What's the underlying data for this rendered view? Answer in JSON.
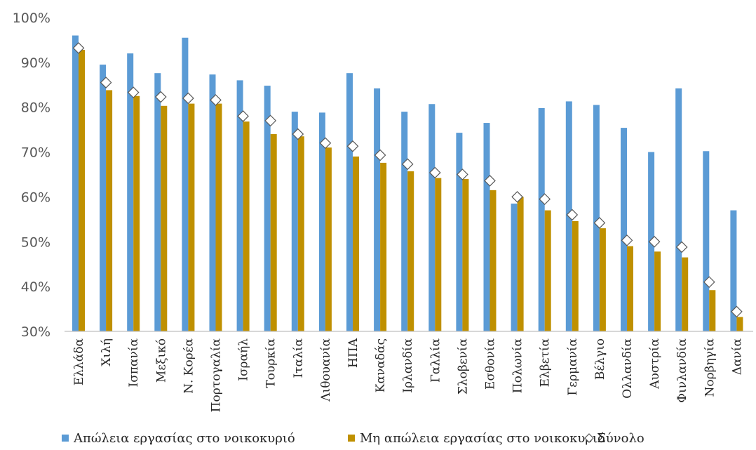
{
  "chart_data": {
    "type": "bar",
    "categories": [
      "Ελλάδα",
      "Χιλή",
      "Ισπανία",
      "Μεξικό",
      "Ν. Κορέα",
      "Πορτογαλία",
      "Ισραήλ",
      "Τουρκία",
      "Ιταλία",
      "Λιθουανία",
      "ΗΠΑ",
      "Καναδάς",
      "Ιρλανδία",
      "Γαλλία",
      "Σλοβενία",
      "Εσθονία",
      "Πολωνία",
      "Ελβετία",
      "Γερμανία",
      "Βέλγιο",
      "Ολλανδία",
      "Αυστρία",
      "Φινλανδία",
      "Νορβηγία",
      "Δανία"
    ],
    "series": [
      {
        "name": "Απώλεια εργασίας στο νοικοκυριό",
        "kind": "bar",
        "color": "#5B9BD5",
        "values": [
          96,
          89.5,
          92,
          87.6,
          95.5,
          87.3,
          86,
          84.8,
          79,
          78.8,
          87.6,
          84.2,
          79,
          80.7,
          74.3,
          76.5,
          58.5,
          79.8,
          81.3,
          80.5,
          75.4,
          70,
          84.2,
          70.2,
          57
        ]
      },
      {
        "name": "Μη απώλεια εργασίας στο νοικοκυριό",
        "kind": "bar",
        "color": "#BF9000",
        "values": [
          92.8,
          83.8,
          82.5,
          80.3,
          80.8,
          80.8,
          76.8,
          74,
          73.5,
          71,
          69,
          67.6,
          65.7,
          64.2,
          64,
          61.5,
          60,
          57,
          54.6,
          53,
          49,
          47.8,
          46.5,
          39.2,
          33.2
        ]
      },
      {
        "name": "Σύνολο",
        "kind": "marker",
        "color": "#ffffff",
        "stroke": "#595959",
        "values": [
          93.2,
          85.5,
          83.3,
          82.3,
          82,
          81.6,
          78,
          77,
          74,
          72,
          71.3,
          69.3,
          67.3,
          65.4,
          65,
          63.6,
          60,
          59.5,
          56,
          54.2,
          50.3,
          50,
          48.8,
          41,
          34.4
        ]
      }
    ],
    "yTicks": [
      "30%",
      "40%",
      "50%",
      "60%",
      "70%",
      "80%",
      "90%",
      "100%"
    ],
    "ylim": [
      30,
      100
    ],
    "grid": false,
    "legend": "bottom",
    "legendMarkers": {
      "bar": "■",
      "marker": "◇"
    }
  }
}
